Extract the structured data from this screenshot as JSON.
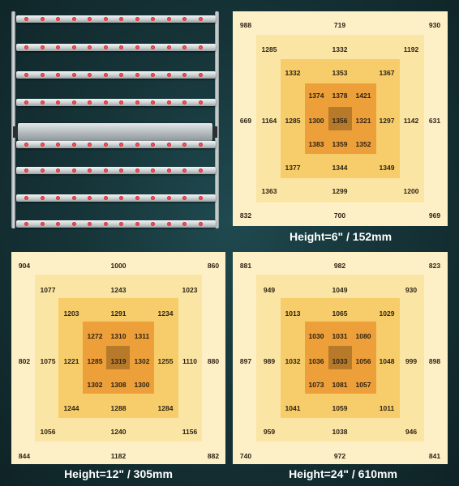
{
  "colors": {
    "ring0": "#fdf0c6",
    "ring1": "#fbe5a4",
    "ring2": "#f6cd6a",
    "ring3": "#ed9f3a",
    "center": "#b77a2a",
    "caption": "#ffffff"
  },
  "fixture": {
    "bars": 8,
    "leds_per_bar": 12,
    "description_icon": "led-grow-light-fixture-icon"
  },
  "panels": [
    {
      "caption": "Height=6\" / 152mm",
      "values": [
        "988",
        "719",
        "930",
        "1285",
        "1332",
        "1192",
        "1332",
        "1353",
        "1367",
        "1374",
        "1378",
        "1421",
        "669",
        "1164",
        "1285",
        "1300",
        "1356",
        "1321",
        "1297",
        "1142",
        "631",
        "1383",
        "1359",
        "1352",
        "1377",
        "1344",
        "1349",
        "1363",
        "1299",
        "1200",
        "832",
        "700",
        "969"
      ]
    },
    {
      "caption": "Height=12\" / 305mm",
      "values": [
        "904",
        "1000",
        "860",
        "1077",
        "1243",
        "1023",
        "1203",
        "1291",
        "1234",
        "1272",
        "1310",
        "1311",
        "802",
        "1075",
        "1221",
        "1285",
        "1319",
        "1302",
        "1255",
        "1110",
        "880",
        "1302",
        "1308",
        "1300",
        "1244",
        "1288",
        "1284",
        "1056",
        "1240",
        "1156",
        "844",
        "1182",
        "882"
      ]
    },
    {
      "caption": "Height=24\" / 610mm",
      "values": [
        "881",
        "982",
        "823",
        "949",
        "1049",
        "930",
        "1013",
        "1065",
        "1029",
        "1030",
        "1031",
        "1080",
        "897",
        "989",
        "1032",
        "1036",
        "1033",
        "1056",
        "1048",
        "999",
        "898",
        "1073",
        "1081",
        "1057",
        "1041",
        "1059",
        "1011",
        "959",
        "1038",
        "946",
        "740",
        "972",
        "841"
      ]
    }
  ]
}
